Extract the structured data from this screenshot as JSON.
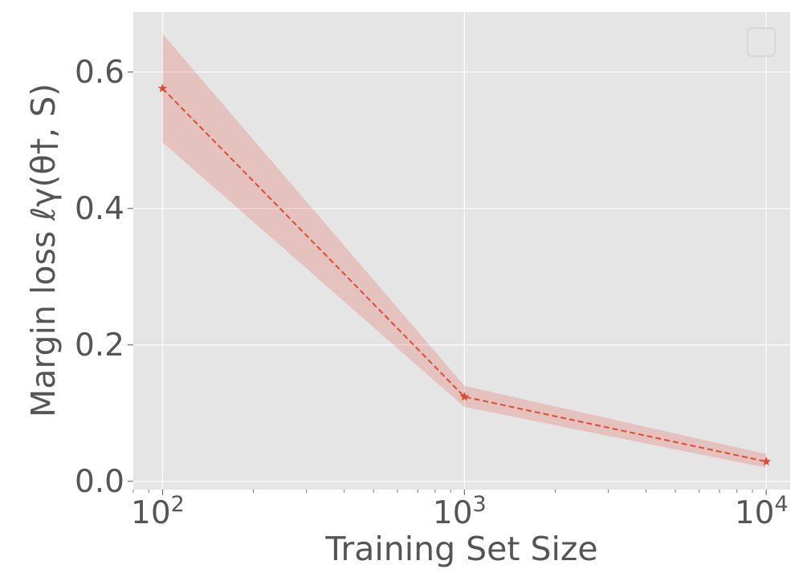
{
  "chart_data": {
    "type": "line",
    "xlabel": "Training Set Size",
    "ylabel": "Margin loss ℓγ(θ†, S)",
    "x_scale": "log",
    "xlim": [
      80,
      12000
    ],
    "ylim": [
      -0.012,
      0.688
    ],
    "x_ticks": [
      {
        "value": 100,
        "base": "10",
        "exp": "2"
      },
      {
        "value": 1000,
        "base": "10",
        "exp": "3"
      },
      {
        "value": 10000,
        "base": "10",
        "exp": "4"
      }
    ],
    "y_ticks": [
      {
        "value": 0.0,
        "label": "0.0"
      },
      {
        "value": 0.2,
        "label": "0.2"
      },
      {
        "value": 0.4,
        "label": "0.4"
      },
      {
        "value": 0.6,
        "label": "0.6"
      }
    ],
    "grid": true,
    "legend": {
      "placement": "top-right",
      "entries": []
    },
    "series": [
      {
        "x": [
          100,
          1000,
          10000
        ],
        "y": [
          0.576,
          0.124,
          0.029
        ],
        "band_lower": [
          0.497,
          0.109,
          0.02
        ],
        "band_upper": [
          0.656,
          0.14,
          0.04
        ],
        "line_style": "dashed",
        "marker": "star"
      }
    ],
    "colors": {
      "series": "#E24A33",
      "band": "#E24A33",
      "plot_background": "#E5E5E5",
      "grid": "#FFFFFF",
      "text": "#555555"
    }
  }
}
